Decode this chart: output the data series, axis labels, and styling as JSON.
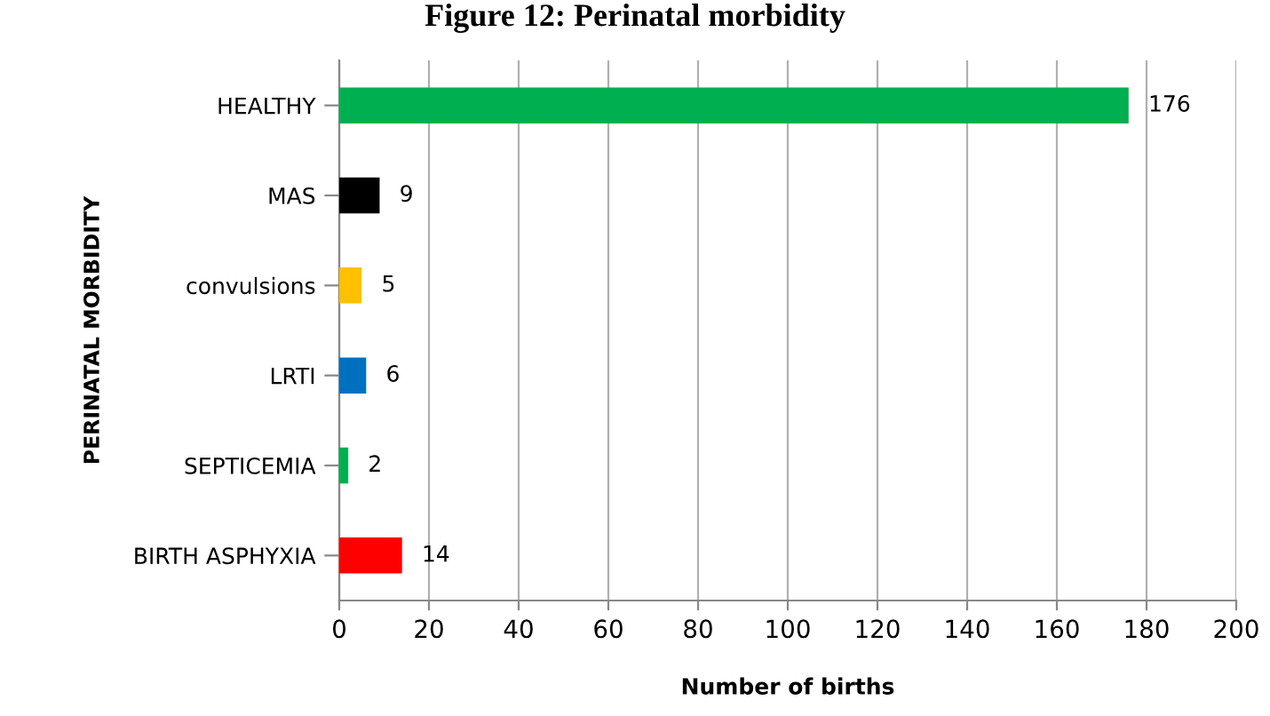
{
  "chart_data": {
    "type": "bar",
    "orientation": "horizontal",
    "title": "Figure 12: Perinatal morbidity",
    "xlabel": "Number of births",
    "ylabel": "PERINATAL MORBIDITY",
    "categories": [
      "HEALTHY",
      "MAS",
      "convulsions",
      "LRTI",
      "SEPTICEMIA",
      "BIRTH ASPHYXIA"
    ],
    "values": [
      176,
      9,
      5,
      6,
      2,
      14
    ],
    "colors": [
      "#00b050",
      "#000000",
      "#ffc000",
      "#0070c0",
      "#00b050",
      "#ff0000"
    ],
    "xlim": [
      0,
      200
    ],
    "xticks": [
      0,
      20,
      40,
      60,
      80,
      100,
      120,
      140,
      160,
      180,
      200
    ],
    "grid": "x",
    "data_labels": true
  }
}
